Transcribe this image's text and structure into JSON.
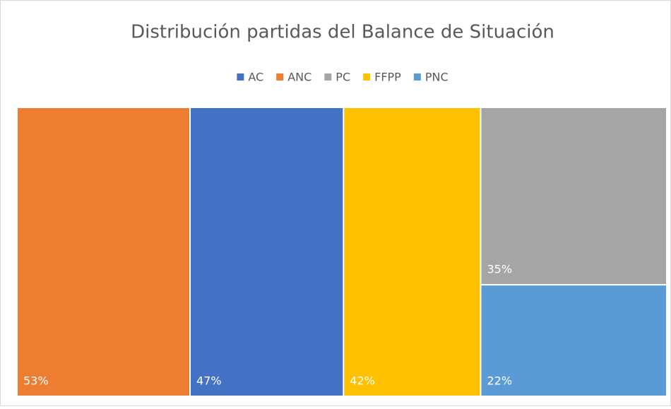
{
  "chart_data": {
    "type": "treemap",
    "title": "Distribución partidas del Balance de Situación",
    "categories": [
      "AC",
      "ANC",
      "PC",
      "FFPP",
      "PNC"
    ],
    "values": [
      47,
      53,
      35,
      42,
      22
    ],
    "value_labels": [
      "47%",
      "53%",
      "35%",
      "42%",
      "22%"
    ],
    "colors": [
      "#4472c4",
      "#ed7d31",
      "#a5a5a5",
      "#ffc000",
      "#5b9bd5"
    ],
    "legend": "top"
  }
}
